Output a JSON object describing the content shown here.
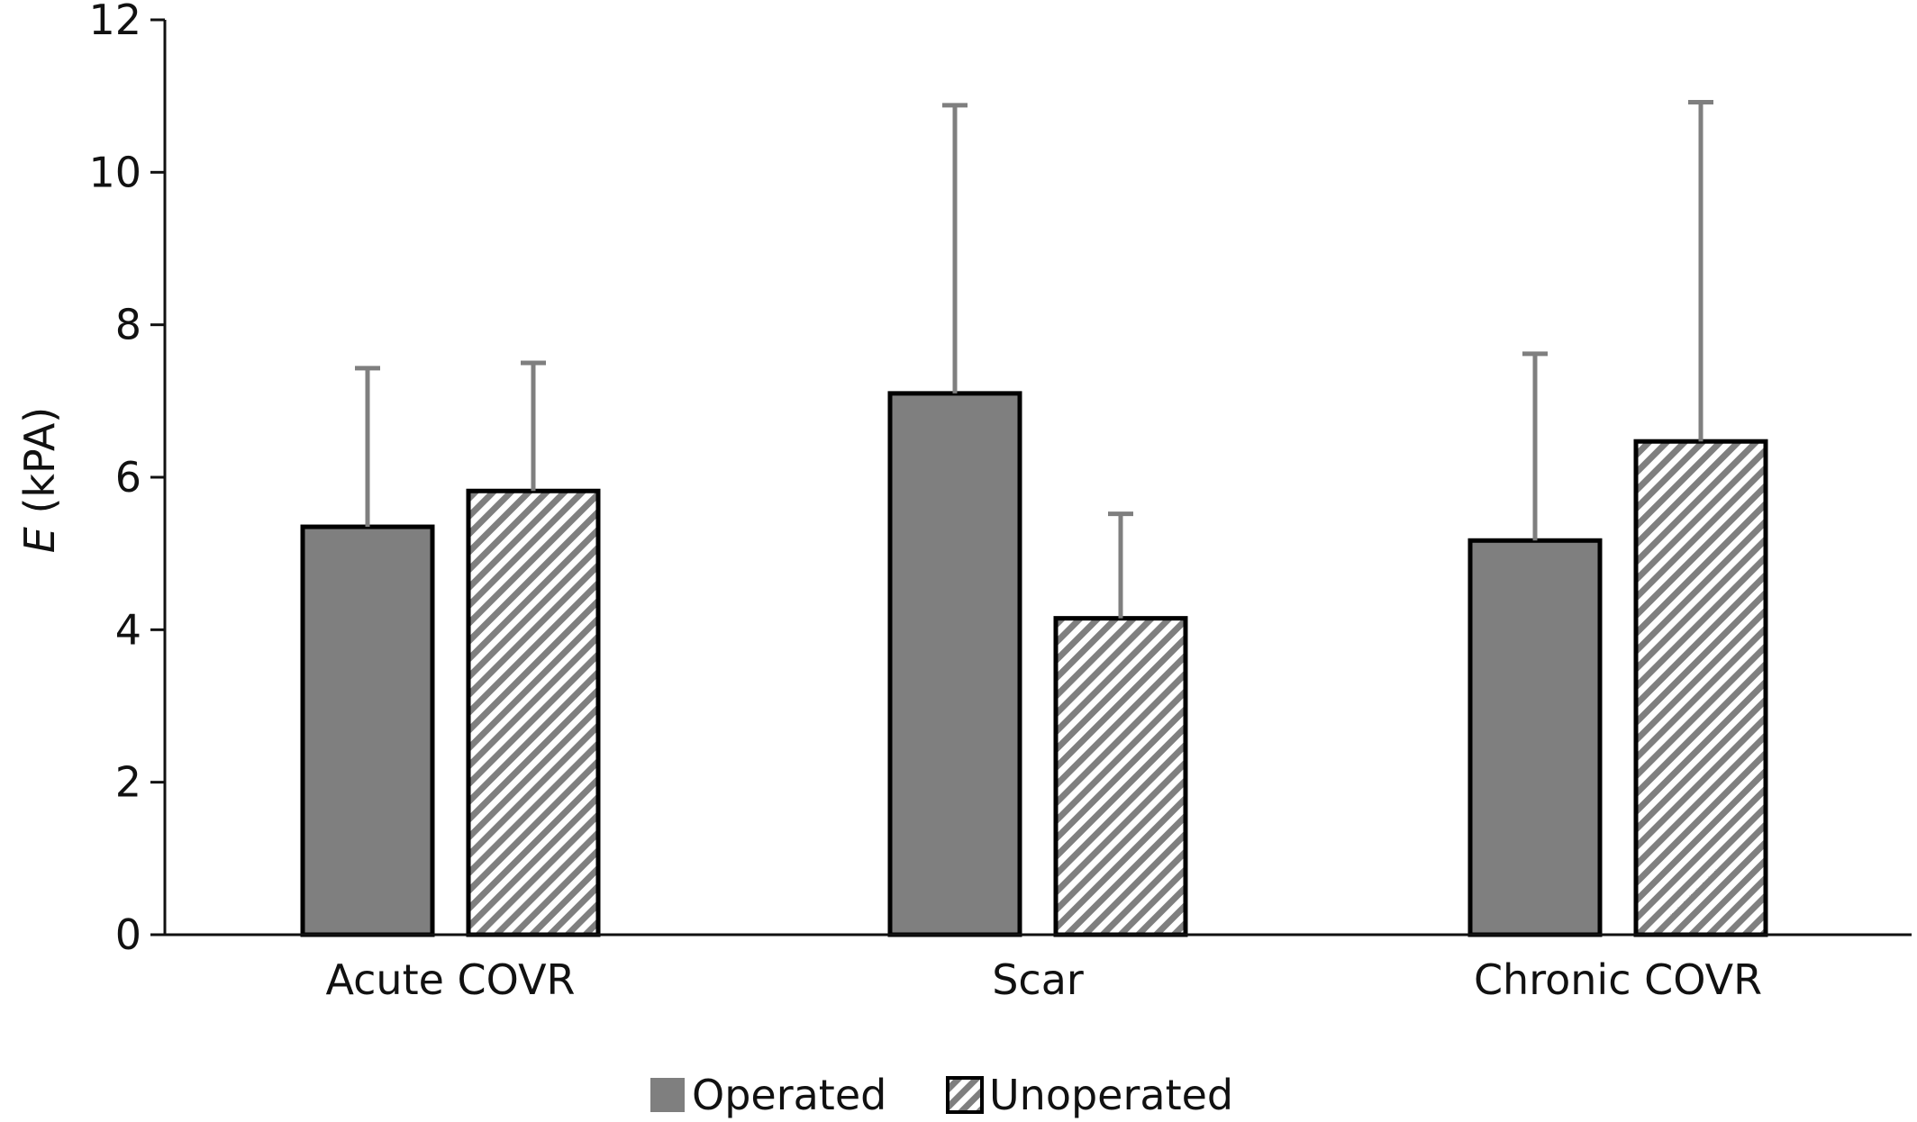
{
  "chart_data": {
    "type": "bar",
    "title": "",
    "ylabel_var": "E",
    "ylabel_unit": " (kPA)",
    "xlabel": "",
    "ylim": [
      0,
      12
    ],
    "yticks": [
      0,
      2,
      4,
      6,
      8,
      10,
      12
    ],
    "grid": false,
    "legend_position": "bottom",
    "categories": [
      "Acute COVR",
      "Scar",
      "Chronic COVR"
    ],
    "series": [
      {
        "name": "Operated",
        "fill": "solid",
        "color": "#7f7f7f",
        "values": [
          5.35,
          7.1,
          5.17
        ],
        "error_plus": [
          2.08,
          3.78,
          2.45
        ]
      },
      {
        "name": "Unoperated",
        "fill": "diagonal-hatch",
        "color": "#7f7f7f",
        "values": [
          5.82,
          4.15,
          6.47
        ],
        "error_plus": [
          1.68,
          1.37,
          4.45
        ]
      }
    ]
  }
}
